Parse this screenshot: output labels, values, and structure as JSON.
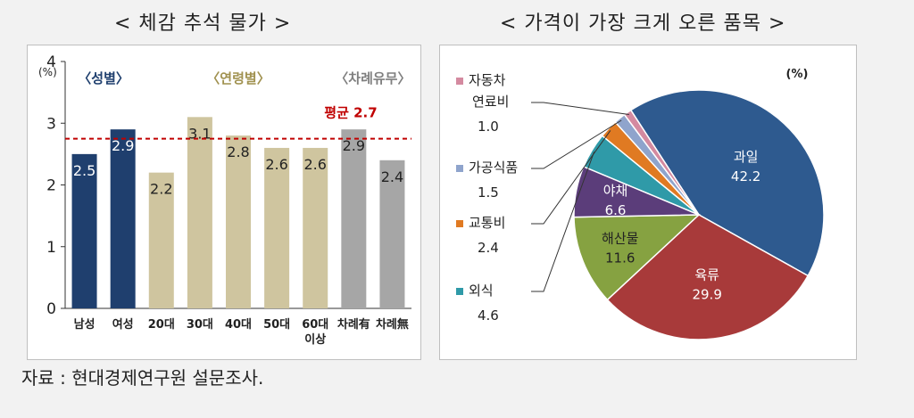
{
  "titles": {
    "left": "< 체감 추석 물가 >",
    "right": "< 가격이 가장 크게 오른 품목 >"
  },
  "source": "자료 : 현대경제연구원 설문조사.",
  "colors": {
    "navy": "#1f3f6e",
    "khaki": "#cfc59f",
    "gray": "#a6a6a6",
    "avg_line": "#c00000",
    "pie": [
      "#2e5a8f",
      "#a83a3a",
      "#86a241",
      "#5b3d7a",
      "#2f9aa8",
      "#e07a22",
      "#8fa4cc",
      "#d48aa0"
    ]
  },
  "chart_data": [
    {
      "type": "bar",
      "title": "< 체감 추석 물가 >",
      "unit": "(%)",
      "ylim": [
        0,
        4
      ],
      "yticks": [
        "0",
        "1",
        "2",
        "3",
        "4"
      ],
      "categories": [
        "남성",
        "여성",
        "20대",
        "30대",
        "40대",
        "50대",
        "60대\n이상",
        "차례有",
        "차례無"
      ],
      "values": [
        2.5,
        2.9,
        2.2,
        3.1,
        2.8,
        2.6,
        2.6,
        2.9,
        2.4
      ],
      "value_labels": [
        "2.5",
        "2.9",
        "2.2",
        "3.1",
        "2.8",
        "2.6",
        "2.6",
        "2.9",
        "2.4"
      ],
      "bar_colors": [
        "navy",
        "navy",
        "khaki",
        "khaki",
        "khaki",
        "khaki",
        "khaki",
        "gray",
        "gray"
      ],
      "groups": [
        {
          "label": "〈성별〉",
          "start": 0,
          "end": 1
        },
        {
          "label": "〈연령별〉",
          "start": 2,
          "end": 6
        },
        {
          "label": "〈차례유무〉",
          "start": 7,
          "end": 8
        }
      ],
      "average": {
        "value": 2.75,
        "label": "평균 2.7"
      },
      "grid": false
    },
    {
      "type": "pie",
      "title": "< 가격이 가장 크게 오른 품목 >",
      "unit": "(%)",
      "slices": [
        {
          "label": "과일",
          "value": 42.2,
          "display": "42.2"
        },
        {
          "label": "육류",
          "value": 29.9,
          "display": "29.9"
        },
        {
          "label": "해산물",
          "value": 11.6,
          "display": "11.6"
        },
        {
          "label": "야채",
          "value": 6.6,
          "display": "6.6"
        },
        {
          "label": "외식",
          "value": 4.6,
          "display": "4.6"
        },
        {
          "label": "교통비",
          "value": 2.4,
          "display": "2.4"
        },
        {
          "label": "가공식품",
          "value": 1.5,
          "display": "1.5"
        },
        {
          "label": "자동차\n연료비",
          "value": 1.0,
          "display": "1.0"
        }
      ]
    }
  ]
}
